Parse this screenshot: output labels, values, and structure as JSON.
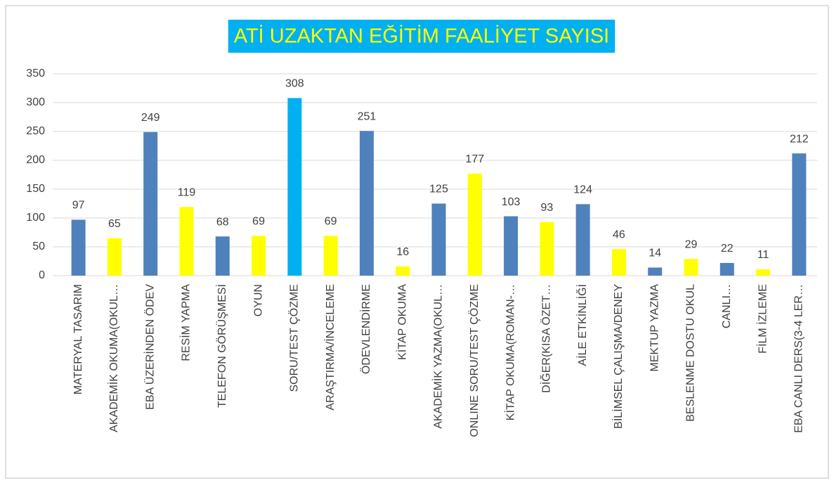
{
  "chart_data": {
    "type": "bar",
    "title": "ATİ UZAKTAN EĞİTİM FAALİYET SAYISI",
    "categories": [
      "MATERYAL TASARIM",
      "AKADEMİK OKUMA(OKUL…",
      "EBA ÜZERİNDEN ÖDEV",
      "RESİM YAPMA",
      "TELEFON GÖRÜŞMESİ",
      "OYUN",
      "SORU/TEST ÇÖZME",
      "ARAŞTIRMA/İNCELEME",
      "ÖDEVLENDİRME",
      "KİTAP OKUMA",
      "AKADEMİK YAZMA(OKUL…",
      "ONLINE SORU/TEST ÇÖZME",
      "KİTAP OKUMA(ROMAN-…",
      "DİĞER(KISA ÖZET…",
      "AİLE ETKİNLİĞİ",
      "BİLİMSEL ÇALIŞMA/DENEY",
      "MEKTUP YAZMA",
      "BESLENME DOSTU OKUL",
      "CANLI…",
      "FİLM İZLEME",
      "EBA CANLI DERS(3-4 LER…"
    ],
    "values": [
      97,
      65,
      249,
      119,
      68,
      69,
      308,
      69,
      251,
      16,
      125,
      177,
      103,
      93,
      124,
      46,
      14,
      29,
      22,
      11,
      212
    ],
    "colors": [
      "#4f81bd",
      "#ffff00",
      "#4f81bd",
      "#ffff00",
      "#4f81bd",
      "#ffff00",
      "#00b0f0",
      "#ffff00",
      "#4f81bd",
      "#ffff00",
      "#4f81bd",
      "#ffff00",
      "#4f81bd",
      "#ffff00",
      "#4f81bd",
      "#ffff00",
      "#4f81bd",
      "#ffff00",
      "#4f81bd",
      "#ffff00",
      "#4f81bd"
    ],
    "ylim": [
      0,
      350
    ],
    "yticks": [
      0,
      50,
      100,
      150,
      200,
      250,
      300,
      350
    ],
    "grid": true
  }
}
